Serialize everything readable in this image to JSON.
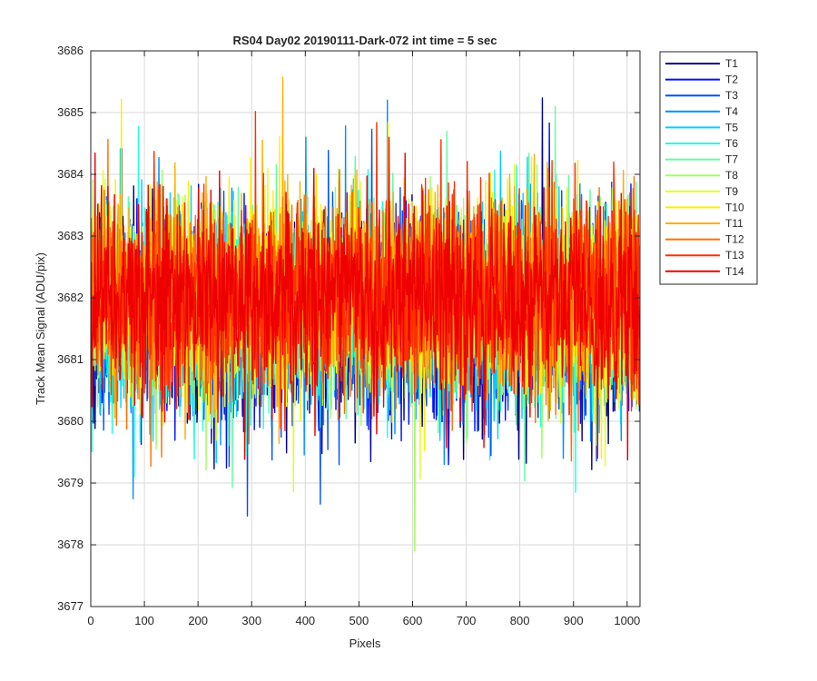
{
  "chart_data": {
    "type": "line",
    "title": "RS04 Day02 20190111-Dark-072 int time = 5 sec",
    "xlabel": "Pixels",
    "ylabel": "Track Mean Signal (ADU/pix)",
    "xlim": [
      0,
      1024
    ],
    "ylim": [
      3677,
      3686
    ],
    "xticks": [
      0,
      100,
      200,
      300,
      400,
      500,
      600,
      700,
      800,
      900,
      1000
    ],
    "yticks": [
      3677,
      3678,
      3679,
      3680,
      3681,
      3682,
      3683,
      3684,
      3685,
      3686
    ],
    "grid": true,
    "legend_location": "outside-top-right",
    "n_pixels": 1024,
    "typical_mean": 3682,
    "typical_min": 3679.2,
    "typical_max": 3685,
    "series": [
      {
        "name": "T1",
        "color": "#00008f",
        "mean": 3681.6,
        "spread": 0.85
      },
      {
        "name": "T2",
        "color": "#0010ff",
        "mean": 3681.6,
        "spread": 0.85
      },
      {
        "name": "T3",
        "color": "#0050ff",
        "mean": 3681.7,
        "spread": 0.85
      },
      {
        "name": "T4",
        "color": "#0090ff",
        "mean": 3681.7,
        "spread": 0.85
      },
      {
        "name": "T5",
        "color": "#00d0ff",
        "mean": 3681.8,
        "spread": 0.85
      },
      {
        "name": "T6",
        "color": "#20ffdf",
        "mean": 3681.8,
        "spread": 0.85
      },
      {
        "name": "T7",
        "color": "#60ff9f",
        "mean": 3681.9,
        "spread": 0.85
      },
      {
        "name": "T8",
        "color": "#9fff60",
        "mean": 3681.9,
        "spread": 0.85
      },
      {
        "name": "T9",
        "color": "#dfff20",
        "mean": 3682.0,
        "spread": 0.85
      },
      {
        "name": "T10",
        "color": "#ffef00",
        "mean": 3682.0,
        "spread": 0.85
      },
      {
        "name": "T11",
        "color": "#ffb000",
        "mean": 3682.0,
        "spread": 0.85
      },
      {
        "name": "T12",
        "color": "#ff7000",
        "mean": 3682.0,
        "spread": 0.85
      },
      {
        "name": "T13",
        "color": "#ff3000",
        "mean": 3682.0,
        "spread": 0.85
      },
      {
        "name": "T14",
        "color": "#ef0000",
        "mean": 3682.0,
        "spread": 0.85
      }
    ]
  }
}
